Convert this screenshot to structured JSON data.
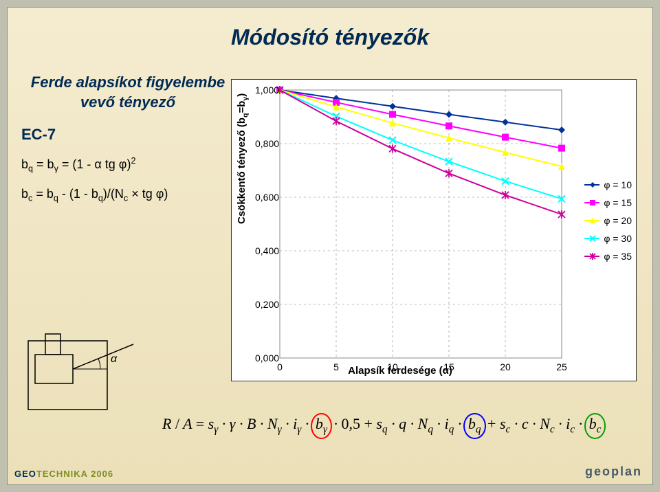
{
  "title": "Módosító tényezők",
  "subhead": "Ferde alapsíkot figyelembe vevő tényező",
  "ec7": "EC-7",
  "eq1": "b_q = b_γ = (1 - α tg φ)^2",
  "eq2": "b_c = b_q - (1 - b_q)/(N_c × tg φ)",
  "chart": {
    "type": "line",
    "xlabel": "Alapsík ferdesége (α)",
    "ylabel": "Csökkentő tényező (b_q=b_γ)",
    "xlim": [
      0,
      25
    ],
    "xtick_step": 5,
    "ylim": [
      0,
      1
    ],
    "ytick_step": 0.2,
    "xticks": [
      "0",
      "5",
      "10",
      "15",
      "20",
      "25"
    ],
    "yticks": [
      "0,000",
      "0,200",
      "0,400",
      "0,600",
      "0,800",
      "1,000"
    ],
    "plot_bg": "#ffffff",
    "grid_color": "#808080",
    "grid_dash": "3,4",
    "series": [
      {
        "name": "φ1",
        "color": "#003399",
        "marker": "diamond",
        "values": [
          1.0,
          0.969,
          0.939,
          0.909,
          0.88,
          0.851
        ]
      },
      {
        "name": "φ2",
        "color": "#ff00ff",
        "marker": "square",
        "values": [
          1.0,
          0.954,
          0.909,
          0.866,
          0.824,
          0.783
        ]
      },
      {
        "name": "φ3",
        "color": "#ffff00",
        "marker": "triangle",
        "values": [
          1.0,
          0.937,
          0.877,
          0.821,
          0.767,
          0.715
        ]
      },
      {
        "name": "φ4",
        "color": "#00ffff",
        "marker": "x",
        "values": [
          1.0,
          0.902,
          0.813,
          0.733,
          0.66,
          0.594
        ]
      },
      {
        "name": "φ5",
        "color": "#cc0099",
        "marker": "star",
        "values": [
          1.0,
          0.884,
          0.781,
          0.689,
          0.608,
          0.536
        ]
      }
    ],
    "x_points": [
      0,
      5,
      10,
      15,
      20,
      25
    ],
    "legend": [
      {
        "label": "φ = 10",
        "color": "#003399",
        "marker": "diamond"
      },
      {
        "label": "φ = 15",
        "color": "#ff00ff",
        "marker": "square"
      },
      {
        "label": "φ = 20",
        "color": "#ffff00",
        "marker": "triangle"
      },
      {
        "label": "φ = 30",
        "color": "#00ffff",
        "marker": "x"
      },
      {
        "label": "φ = 35",
        "color": "#cc0099",
        "marker": "star"
      }
    ]
  },
  "formula": {
    "text": "R / A = s_γ · γ · B · N_γ · i_γ · b_γ · 0,5 + s_q · q · N_q · i_q · b_q + s_c · c · N_c · i_c · b_c",
    "circle_colors": {
      "bg": "#ff0000",
      "bq": "#0000ff",
      "bc": "#00a000"
    }
  },
  "alpha_label": "α",
  "footer_left": "GEOTECHNIKA 2006",
  "footer_right": "geoplan"
}
